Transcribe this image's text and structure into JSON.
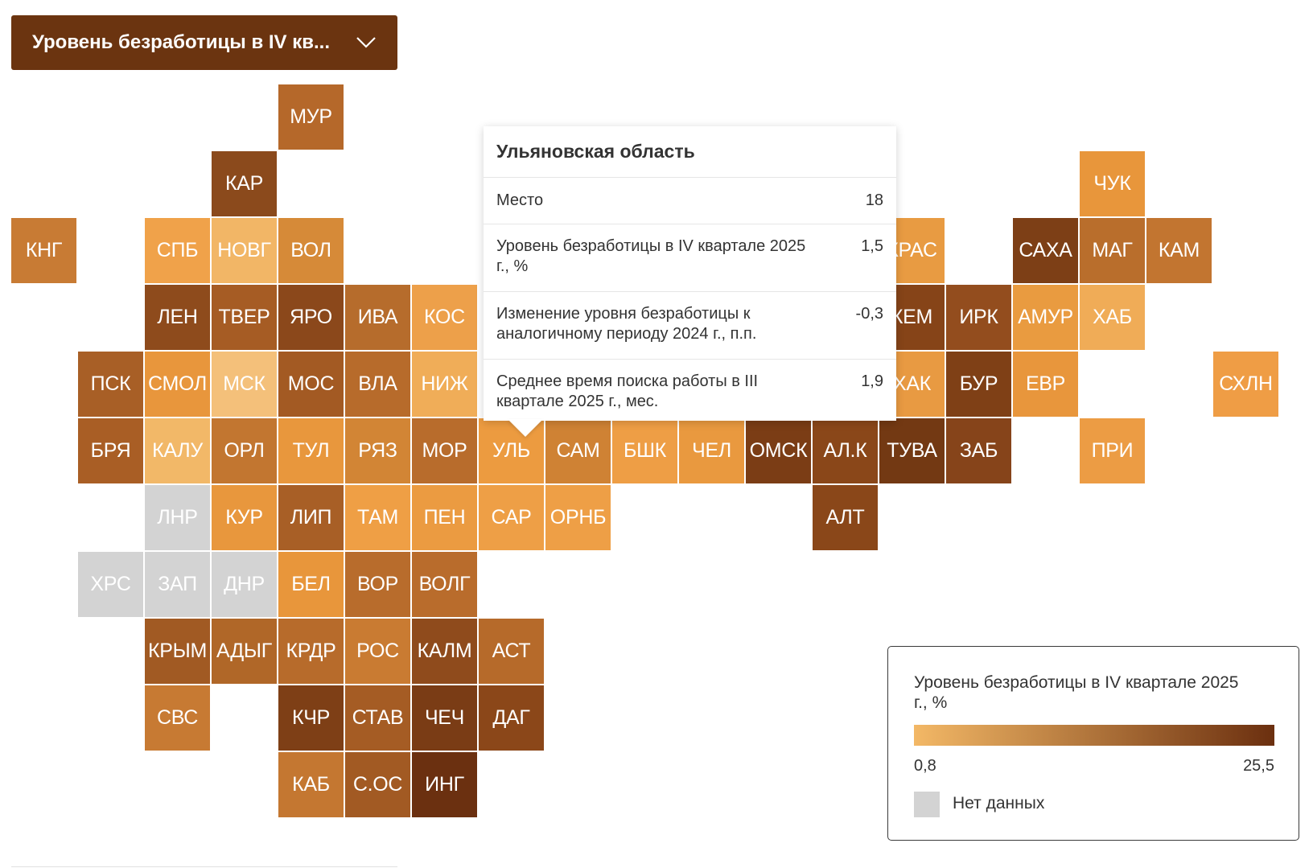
{
  "selector": {
    "label": "Уровень безработицы в IV кв...",
    "icon": "chevron-down-icon",
    "color": "#6b3410"
  },
  "tiles": [
    {
      "code": "МУР",
      "col": 4,
      "row": 0,
      "color": "#b5682a"
    },
    {
      "code": "КАР",
      "col": 3,
      "row": 1,
      "color": "#8b4a1c"
    },
    {
      "code": "ЧУК",
      "col": 16,
      "row": 1,
      "color": "#e8963b"
    },
    {
      "code": "КНГ",
      "col": 0,
      "row": 2,
      "color": "#c87b34"
    },
    {
      "code": "СПБ",
      "col": 2,
      "row": 2,
      "color": "#f0a24a"
    },
    {
      "code": "НОВГ",
      "col": 3,
      "row": 2,
      "color": "#f2b666"
    },
    {
      "code": "ВОЛ",
      "col": 4,
      "row": 2,
      "color": "#d68a38"
    },
    {
      "code": "КРАС",
      "col": 13,
      "row": 2,
      "color": "#e89b42"
    },
    {
      "code": "САХА",
      "col": 15,
      "row": 2,
      "color": "#7d3f16"
    },
    {
      "code": "МАГ",
      "col": 16,
      "row": 2,
      "color": "#b96e2c"
    },
    {
      "code": "КАМ",
      "col": 17,
      "row": 2,
      "color": "#c27530"
    },
    {
      "code": "ЛЕН",
      "col": 2,
      "row": 3,
      "color": "#8e4b1c"
    },
    {
      "code": "ТВЕР",
      "col": 3,
      "row": 3,
      "color": "#a65c24"
    },
    {
      "code": "ЯРО",
      "col": 4,
      "row": 3,
      "color": "#8b481b"
    },
    {
      "code": "ИВА",
      "col": 5,
      "row": 3,
      "color": "#b66c2c"
    },
    {
      "code": "КОС",
      "col": 6,
      "row": 3,
      "color": "#eda04a"
    },
    {
      "code": "КЕМ",
      "col": 13,
      "row": 3,
      "color": "#864418"
    },
    {
      "code": "ИРК",
      "col": 14,
      "row": 3,
      "color": "#934d1e"
    },
    {
      "code": "АМУР",
      "col": 15,
      "row": 3,
      "color": "#e99b40"
    },
    {
      "code": "ХАБ",
      "col": 16,
      "row": 3,
      "color": "#f0ac57"
    },
    {
      "code": "ПСК",
      "col": 1,
      "row": 4,
      "color": "#a85f26"
    },
    {
      "code": "СМОЛ",
      "col": 2,
      "row": 4,
      "color": "#e8963c"
    },
    {
      "code": "МСК",
      "col": 3,
      "row": 4,
      "color": "#f4c07a"
    },
    {
      "code": "МОС",
      "col": 4,
      "row": 4,
      "color": "#a35a23"
    },
    {
      "code": "ВЛА",
      "col": 5,
      "row": 4,
      "color": "#b76b2b"
    },
    {
      "code": "НИЖ",
      "col": 6,
      "row": 4,
      "color": "#f0ad58"
    },
    {
      "code": "ХАК",
      "col": 13,
      "row": 4,
      "color": "#e89a42"
    },
    {
      "code": "БУР",
      "col": 14,
      "row": 4,
      "color": "#7f4016"
    },
    {
      "code": "ЕВР",
      "col": 15,
      "row": 4,
      "color": "#e8963c"
    },
    {
      "code": "СХЛН",
      "col": 18,
      "row": 4,
      "color": "#ef9d45"
    },
    {
      "code": "БРЯ",
      "col": 1,
      "row": 5,
      "color": "#a95e25"
    },
    {
      "code": "КАЛУ",
      "col": 2,
      "row": 5,
      "color": "#f2b868"
    },
    {
      "code": "ОРЛ",
      "col": 3,
      "row": 5,
      "color": "#c27630"
    },
    {
      "code": "ТУЛ",
      "col": 4,
      "row": 5,
      "color": "#e8973d"
    },
    {
      "code": "РЯЗ",
      "col": 5,
      "row": 5,
      "color": "#d28535"
    },
    {
      "code": "МОР",
      "col": 6,
      "row": 5,
      "color": "#b86c2c"
    },
    {
      "code": "УЛЬ",
      "col": 7,
      "row": 5,
      "color": "#ec9b40"
    },
    {
      "code": "САМ",
      "col": 8,
      "row": 5,
      "color": "#cf8234"
    },
    {
      "code": "БШК",
      "col": 9,
      "row": 5,
      "color": "#ee9e45"
    },
    {
      "code": "ЧЕЛ",
      "col": 10,
      "row": 5,
      "color": "#e9993f"
    },
    {
      "code": "ОМСК",
      "col": 11,
      "row": 5,
      "color": "#7b3d15"
    },
    {
      "code": "АЛ.К",
      "col": 12,
      "row": 5,
      "color": "#8a4719"
    },
    {
      "code": "ТУВА",
      "col": 13,
      "row": 5,
      "color": "#733913"
    },
    {
      "code": "ЗАБ",
      "col": 14,
      "row": 5,
      "color": "#86441a"
    },
    {
      "code": "ПРИ",
      "col": 16,
      "row": 5,
      "color": "#ec9c44"
    },
    {
      "code": "ЛНР",
      "col": 2,
      "row": 6,
      "color": "#d3d3d3"
    },
    {
      "code": "КУР",
      "col": 3,
      "row": 6,
      "color": "#e8973d"
    },
    {
      "code": "ЛИП",
      "col": 4,
      "row": 6,
      "color": "#a85f26"
    },
    {
      "code": "ТАМ",
      "col": 5,
      "row": 6,
      "color": "#ef9f45"
    },
    {
      "code": "ПЕН",
      "col": 6,
      "row": 6,
      "color": "#eb9b41"
    },
    {
      "code": "САР",
      "col": 7,
      "row": 6,
      "color": "#ee9f46"
    },
    {
      "code": "ОРНБ",
      "col": 8,
      "row": 6,
      "color": "#ee9f46"
    },
    {
      "code": "АЛТ",
      "col": 12,
      "row": 6,
      "color": "#8a4719"
    },
    {
      "code": "ХРС",
      "col": 1,
      "row": 7,
      "color": "#d3d3d3"
    },
    {
      "code": "ЗАП",
      "col": 2,
      "row": 7,
      "color": "#d3d3d3"
    },
    {
      "code": "ДНР",
      "col": 3,
      "row": 7,
      "color": "#d3d3d3"
    },
    {
      "code": "БЕЛ",
      "col": 4,
      "row": 7,
      "color": "#e8963b"
    },
    {
      "code": "ВОР",
      "col": 5,
      "row": 7,
      "color": "#b86c2c"
    },
    {
      "code": "ВОЛГ",
      "col": 6,
      "row": 7,
      "color": "#b96c2c"
    },
    {
      "code": "КРЫМ",
      "col": 2,
      "row": 8,
      "color": "#a15a23"
    },
    {
      "code": "АДЫГ",
      "col": 3,
      "row": 8,
      "color": "#b06728"
    },
    {
      "code": "КРДР",
      "col": 4,
      "row": 8,
      "color": "#b76b2b"
    },
    {
      "code": "РОС",
      "col": 5,
      "row": 8,
      "color": "#c97b32"
    },
    {
      "code": "КАЛМ",
      "col": 6,
      "row": 8,
      "color": "#8f4b1c"
    },
    {
      "code": "АСТ",
      "col": 7,
      "row": 8,
      "color": "#b66a2a"
    },
    {
      "code": "СВС",
      "col": 2,
      "row": 9,
      "color": "#c77a33"
    },
    {
      "code": "КЧР",
      "col": 4,
      "row": 9,
      "color": "#7e3f16"
    },
    {
      "code": "СТАВ",
      "col": 5,
      "row": 9,
      "color": "#a55c24"
    },
    {
      "code": "ЧЕЧ",
      "col": 6,
      "row": 9,
      "color": "#7a3c15"
    },
    {
      "code": "ДАГ",
      "col": 7,
      "row": 9,
      "color": "#8b4719"
    },
    {
      "code": "КАБ",
      "col": 4,
      "row": 10,
      "color": "#c47731"
    },
    {
      "code": "С.ОС",
      "col": 5,
      "row": 10,
      "color": "#a25a23"
    },
    {
      "code": "ИНГ",
      "col": 6,
      "row": 10,
      "color": "#6b3010"
    }
  ],
  "tooltip": {
    "title": "Ульяновская область",
    "rows": [
      {
        "label": "Место",
        "value": "18"
      },
      {
        "label": "Уровень безработицы в IV квартале 2025 г., %",
        "value": "1,5"
      },
      {
        "label": "Изменение уровня безработицы к аналогичному периоду 2024 г., п.п.",
        "value": "-0,3"
      },
      {
        "label": "Среднее время поиска работы в III квартале 2025 г., мес.",
        "value": "1,9"
      }
    ]
  },
  "legend": {
    "title": "Уровень безработицы в IV квартале 2025 г., %",
    "min": "0,8",
    "max": "25,5",
    "gradient_start": "#f3b866",
    "gradient_end": "#6b2f0f",
    "no_data_label": "Нет данных",
    "no_data_color": "#d3d3d3"
  }
}
